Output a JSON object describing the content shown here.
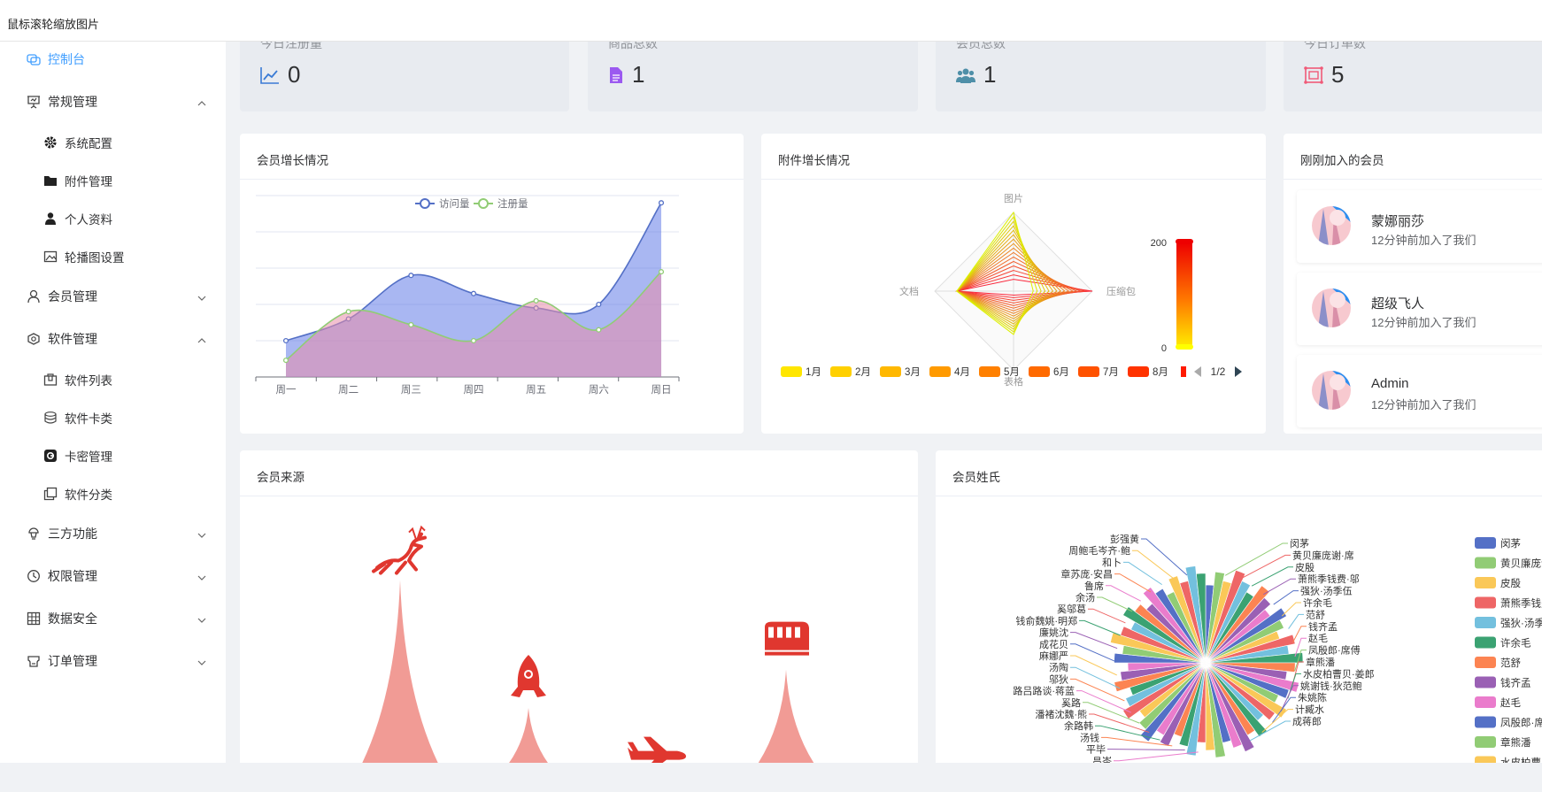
{
  "window": {
    "title": "鼠标滚轮缩放图片"
  },
  "sidebar": {
    "items": [
      {
        "label": "控制台",
        "icon": "dashboard-icon",
        "level": "top",
        "active": true
      },
      {
        "label": "常规管理",
        "icon": "presentation-icon",
        "level": "top",
        "expanded": true
      },
      {
        "label": "系统配置",
        "icon": "gear-icon",
        "level": "sub"
      },
      {
        "label": "附件管理",
        "icon": "folder-icon",
        "level": "sub"
      },
      {
        "label": "个人资料",
        "icon": "user-icon",
        "level": "sub"
      },
      {
        "label": "轮播图设置",
        "icon": "image-icon",
        "level": "sub"
      },
      {
        "label": "会员管理",
        "icon": "user-outline-icon",
        "level": "top",
        "expanded": false
      },
      {
        "label": "软件管理",
        "icon": "software-icon",
        "level": "top",
        "expanded": true
      },
      {
        "label": "软件列表",
        "icon": "box-icon",
        "level": "sub"
      },
      {
        "label": "软件卡类",
        "icon": "coins-icon",
        "level": "sub"
      },
      {
        "label": "卡密管理",
        "icon": "key-card-icon",
        "level": "sub"
      },
      {
        "label": "软件分类",
        "icon": "copy-icon",
        "level": "sub"
      },
      {
        "label": "三方功能",
        "icon": "third-party-icon",
        "level": "top",
        "expanded": false
      },
      {
        "label": "权限管理",
        "icon": "clock-icon",
        "level": "top",
        "expanded": false
      },
      {
        "label": "数据安全",
        "icon": "grid-icon",
        "level": "top",
        "expanded": false
      },
      {
        "label": "订单管理",
        "icon": "order-icon",
        "level": "top",
        "expanded": false
      }
    ]
  },
  "stats": [
    {
      "label": "今日注册量",
      "value": "0",
      "icon": "line-chart-icon",
      "color": "#3a7bd5"
    },
    {
      "label": "商品总数",
      "value": "1",
      "icon": "document-icon",
      "color": "#9b59f0"
    },
    {
      "label": "会员总数",
      "value": "1",
      "icon": "users-icon",
      "color": "#4e8fa8"
    },
    {
      "label": "今日订单数",
      "value": "5",
      "icon": "order-frame-icon",
      "color": "#f05a78"
    }
  ],
  "cards": {
    "growth": {
      "title": "会员增长情况"
    },
    "attachments": {
      "title": "附件增长情况"
    },
    "recent": {
      "title": "刚刚加入的会员"
    },
    "source": {
      "title": "会员来源"
    },
    "surname": {
      "title": "会员姓氏"
    }
  },
  "recent_members": [
    {
      "name": "蒙娜丽莎",
      "time": "12分钟前加入了我们"
    },
    {
      "name": "超级飞人",
      "time": "12分钟前加入了我们"
    },
    {
      "name": "Admin",
      "time": "12分钟前加入了我们"
    }
  ],
  "chart_data": [
    {
      "type": "area",
      "title": "会员增长情况",
      "categories": [
        "周一",
        "周二",
        "周三",
        "周四",
        "周五",
        "周六",
        "周日"
      ],
      "ylim": [
        0,
        250
      ],
      "legend_position": "top",
      "grid": true,
      "series": [
        {
          "name": "访问量",
          "values": [
            50,
            80,
            140,
            115,
            95,
            100,
            240
          ],
          "color": "#5470c6"
        },
        {
          "name": "注册量",
          "values": [
            23,
            90,
            72,
            50,
            105,
            65,
            145
          ],
          "color": "#91cc75"
        }
      ]
    },
    {
      "type": "radar",
      "title": "附件增长情况",
      "indicators": [
        "图片",
        "压缩包",
        "表格",
        "文档"
      ],
      "legend": [
        "1月",
        "2月",
        "3月",
        "4月",
        "5月",
        "6月",
        "7月",
        "8月"
      ],
      "legend_page": "1/2",
      "visual_map": {
        "min": 0,
        "max": 200,
        "max_label": "200",
        "min_label": "0"
      }
    },
    {
      "type": "pictorial-bar",
      "title": "会员来源",
      "categories": [
        "reindeer",
        "rocket",
        "plane",
        "train"
      ],
      "icons": [
        "reindeer-icon",
        "rocket-icon",
        "plane-icon",
        "train-icon"
      ],
      "values": [
        170,
        70,
        10,
        100
      ],
      "color": "#f19b95"
    },
    {
      "type": "pie",
      "title": "会员姓氏",
      "legend_position": "right",
      "slice_labels": [
        "彭强黄",
        "闵茅",
        "周鲍毛岑齐·鲍",
        "黄贝廉庞谢·席",
        "和卜",
        "皮殷",
        "章苏庞·安昌",
        "萧熊季钱费·邬",
        "鲁席",
        "强狄·汤季伍",
        "余汤",
        "许余毛",
        "奚邬葛",
        "范舒",
        "钱俞魏姚·明郑",
        "钱齐孟",
        "廉姚沈",
        "赵毛",
        "成花贝",
        "凤殷郎·席傅",
        "麻娜严",
        "章熊潘",
        "汤陶",
        "水皮柏曹贝·姜郎",
        "邬狄",
        "姚谢钱·狄范鲍",
        "路吕路谈·蒋蓝",
        "朱姚陈",
        "奚路",
        "计臧水",
        "潘褚沈魏·熊",
        "成蒋郎",
        "余路韩",
        "汤钱",
        "平毕",
        "昌岑"
      ],
      "legend": [
        "闵茅",
        "黄贝廉庞谢·席",
        "皮殷",
        "萧熊季钱费·邬",
        "强狄·汤季伍",
        "许余毛",
        "范舒",
        "钱齐孟",
        "赵毛",
        "凤殷郎·席傅",
        "章熊潘",
        "水皮柏曹贝·姜郎"
      ]
    }
  ],
  "colors": {
    "accent": "#409eff",
    "palette": [
      "#5470c6",
      "#91cc75",
      "#fac858",
      "#ee6666",
      "#73c0de",
      "#3ba272",
      "#fc8452",
      "#9a60b4",
      "#ea7ccc"
    ]
  }
}
